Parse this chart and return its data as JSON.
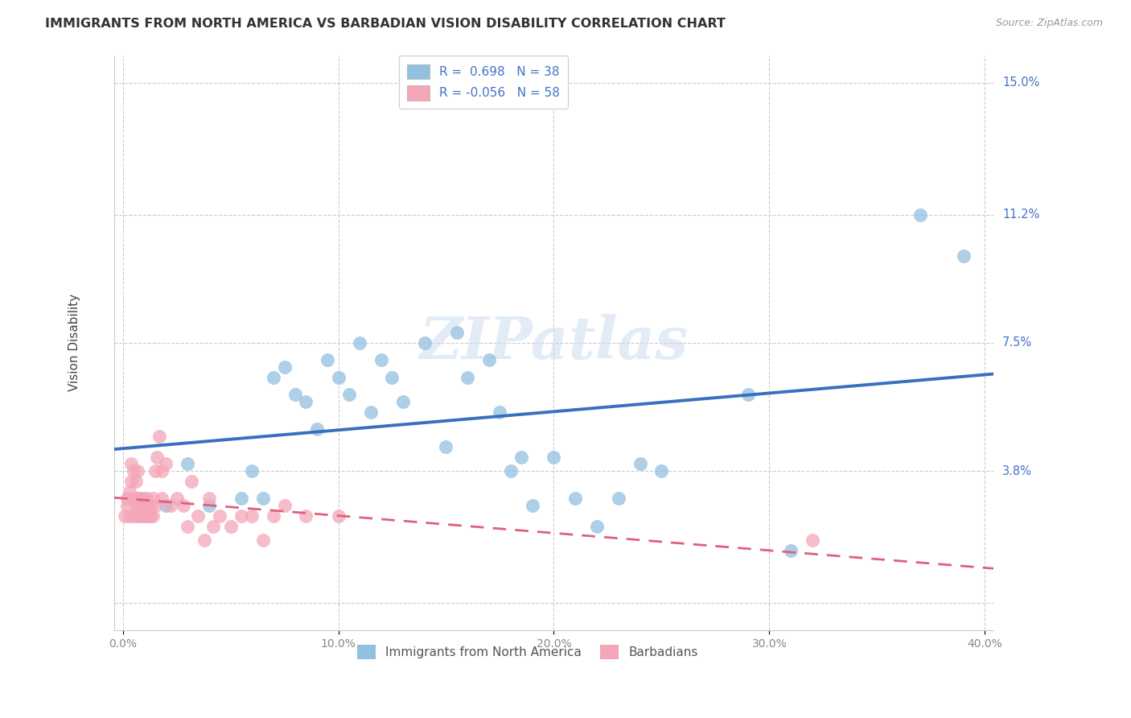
{
  "title": "IMMIGRANTS FROM NORTH AMERICA VS BARBADIAN VISION DISABILITY CORRELATION CHART",
  "source": "Source: ZipAtlas.com",
  "ylabel": "Vision Disability",
  "watermark": "ZIPatlas",
  "blue_color": "#92c0e0",
  "blue_line_color": "#3a6fbf",
  "pink_color": "#f4a6b8",
  "pink_line_color": "#e0607a",
  "blue_scatter_x": [
    0.02,
    0.03,
    0.04,
    0.055,
    0.06,
    0.065,
    0.07,
    0.075,
    0.08,
    0.085,
    0.09,
    0.095,
    0.1,
    0.105,
    0.11,
    0.115,
    0.12,
    0.125,
    0.13,
    0.14,
    0.15,
    0.155,
    0.16,
    0.17,
    0.175,
    0.18,
    0.185,
    0.19,
    0.2,
    0.21,
    0.22,
    0.23,
    0.24,
    0.25,
    0.29,
    0.31,
    0.37,
    0.39
  ],
  "blue_scatter_y": [
    0.028,
    0.04,
    0.028,
    0.03,
    0.038,
    0.03,
    0.065,
    0.068,
    0.06,
    0.058,
    0.05,
    0.07,
    0.065,
    0.06,
    0.075,
    0.055,
    0.07,
    0.065,
    0.058,
    0.075,
    0.045,
    0.078,
    0.065,
    0.07,
    0.055,
    0.038,
    0.042,
    0.028,
    0.042,
    0.03,
    0.022,
    0.03,
    0.04,
    0.038,
    0.06,
    0.015,
    0.112,
    0.1
  ],
  "pink_scatter_x": [
    0.001,
    0.002,
    0.002,
    0.003,
    0.003,
    0.004,
    0.004,
    0.005,
    0.005,
    0.005,
    0.006,
    0.006,
    0.006,
    0.007,
    0.007,
    0.007,
    0.008,
    0.008,
    0.008,
    0.009,
    0.009,
    0.01,
    0.01,
    0.01,
    0.011,
    0.011,
    0.012,
    0.012,
    0.013,
    0.013,
    0.014,
    0.014,
    0.015,
    0.015,
    0.016,
    0.017,
    0.018,
    0.018,
    0.02,
    0.022,
    0.025,
    0.028,
    0.03,
    0.032,
    0.035,
    0.038,
    0.04,
    0.042,
    0.045,
    0.05,
    0.055,
    0.06,
    0.065,
    0.07,
    0.075,
    0.085,
    0.1,
    0.32
  ],
  "pink_scatter_y": [
    0.025,
    0.028,
    0.03,
    0.032,
    0.025,
    0.035,
    0.04,
    0.038,
    0.03,
    0.025,
    0.03,
    0.028,
    0.035,
    0.025,
    0.03,
    0.038,
    0.025,
    0.028,
    0.03,
    0.025,
    0.028,
    0.025,
    0.03,
    0.028,
    0.025,
    0.03,
    0.027,
    0.025,
    0.028,
    0.025,
    0.03,
    0.025,
    0.038,
    0.028,
    0.042,
    0.048,
    0.03,
    0.038,
    0.04,
    0.028,
    0.03,
    0.028,
    0.022,
    0.035,
    0.025,
    0.018,
    0.03,
    0.022,
    0.025,
    0.022,
    0.025,
    0.025,
    0.018,
    0.025,
    0.028,
    0.025,
    0.025,
    0.018
  ],
  "x_min": -0.004,
  "x_max": 0.404,
  "y_min": -0.008,
  "y_max": 0.158,
  "y_tick_vals": [
    0.0,
    0.038,
    0.075,
    0.112,
    0.15
  ],
  "y_tick_labels": [
    "",
    "3.8%",
    "7.5%",
    "11.2%",
    "15.0%"
  ],
  "x_tick_vals": [
    0.0,
    0.1,
    0.2,
    0.3,
    0.4
  ],
  "x_tick_labels": [
    "0.0%",
    "10.0%",
    "20.0%",
    "30.0%",
    "40.0%"
  ]
}
